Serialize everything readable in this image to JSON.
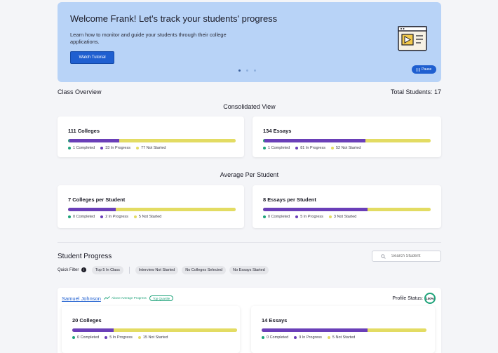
{
  "banner": {
    "title": "Welcome Frank! Let's track your students' progress",
    "description": "Learn how to monitor and guide your students through their college applications.",
    "watch_tutorial_label": "Watch Tutorial",
    "pause_label": "Pause",
    "slides_count": 3,
    "active_slide": 1
  },
  "overview": {
    "title": "Class Overview",
    "total_students": "Total Students: 17",
    "consolidated_title": "Consolidated View",
    "average_title": "Average Per Student"
  },
  "consolidated": {
    "colleges": {
      "title": "111 Colleges",
      "completed": 1,
      "in_progress": 33,
      "not_started": 77,
      "completed_label": "1 Completed",
      "in_progress_label": "33 In Progress",
      "not_started_label": "77 Not Started"
    },
    "essays": {
      "title": "134 Essays",
      "completed": 1,
      "in_progress": 81,
      "not_started": 52,
      "completed_label": "1 Completed",
      "in_progress_label": "81 In Progress",
      "not_started_label": "52 Not Started"
    }
  },
  "average": {
    "colleges": {
      "title": "7 Colleges per Student",
      "completed": 0,
      "in_progress": 2,
      "not_started": 5,
      "completed_label": "0 Completed",
      "in_progress_label": "2 In Progress",
      "not_started_label": "5 Not Started"
    },
    "essays": {
      "title": "8 Essays per Student",
      "completed": 0,
      "in_progress": 5,
      "not_started": 3,
      "completed_label": "0 Completed",
      "in_progress_label": "5 In Progress",
      "not_started_label": "3 Not Started"
    }
  },
  "student_progress": {
    "title": "Student Progress",
    "search_placeholder": "Search Student",
    "quick_filter_label": "Quick Filter",
    "chips": [
      "Top 5 In Class",
      "Interview Not Started",
      "No Colleges Selected",
      "No Essays Started"
    ]
  },
  "student": {
    "name": "Samuel Johnson",
    "trend_label": "Above Average Progress",
    "quartile_label": "Top Quartile",
    "profile_status_label": "Profile Status:",
    "profile_status_value": "100%",
    "colleges": {
      "title": "20 Colleges",
      "completed": 0,
      "in_progress": 5,
      "not_started": 15,
      "completed_label": "0 Completed",
      "in_progress_label": "5 In Progress",
      "not_started_label": "15 Not Started"
    },
    "essays": {
      "title": "14 Essays",
      "completed": 0,
      "in_progress": 9,
      "not_started": 5,
      "completed_label": "0 Completed",
      "in_progress_label": "9 In Progress",
      "not_started_label": "5 Not Started"
    }
  },
  "colors": {
    "completed": "#1fa37a",
    "in_progress": "#6a3fb8",
    "not_started": "#e3dc63",
    "accent": "#1f5fd0"
  }
}
